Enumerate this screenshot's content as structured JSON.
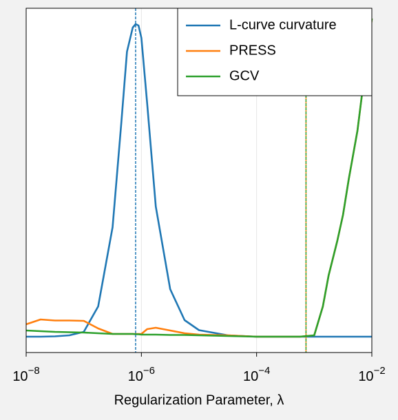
{
  "chart_data": {
    "type": "line",
    "xlabel": "Regularization Parameter, λ",
    "xscale": "log",
    "xlim": [
      1e-08,
      0.01
    ],
    "ylim": [
      0,
      1
    ],
    "xticks": [
      {
        "value": 1e-08,
        "label": "10",
        "exponent": "−8"
      },
      {
        "value": 1e-06,
        "label": "10",
        "exponent": "−6"
      },
      {
        "value": 0.0001,
        "label": "10",
        "exponent": "−4"
      },
      {
        "value": 0.01,
        "label": "10",
        "exponent": "−2"
      }
    ],
    "grid": true,
    "legend": "upper right",
    "x": [
      1e-08,
      1.778e-08,
      3.162e-08,
      5.623e-08,
      1e-07,
      1.778e-07,
      3.162e-07,
      4.467e-07,
      5.623e-07,
      7.079e-07,
      7.943e-07,
      8.913e-07,
      1e-06,
      1.259e-06,
      1.778e-06,
      3.162e-06,
      5.623e-06,
      1e-05,
      3.162e-05,
      0.0001,
      0.0003162,
      0.0005623,
      0.001,
      0.001413,
      0.001778,
      0.002512,
      0.003162,
      0.003981,
      0.005623,
      0.007943,
      0.01
    ],
    "series": [
      {
        "name": "L-curve curvature",
        "color": "#1f77b4",
        "values": [
          0.046,
          0.046,
          0.047,
          0.05,
          0.06,
          0.134,
          0.364,
          0.664,
          0.874,
          0.944,
          0.954,
          0.95,
          0.914,
          0.724,
          0.424,
          0.184,
          0.094,
          0.065,
          0.05,
          0.046,
          0.046,
          0.046,
          0.046,
          0.046,
          0.046,
          0.046,
          0.046,
          0.046,
          0.046,
          0.046,
          0.046
        ]
      },
      {
        "name": "PRESS",
        "color": "#ff7f0e",
        "values": [
          0.082,
          0.096,
          0.093,
          0.093,
          0.092,
          0.07,
          0.054,
          0.054,
          0.054,
          0.054,
          0.054,
          0.054,
          0.054,
          0.068,
          0.072,
          0.064,
          0.056,
          0.052,
          0.05,
          0.046,
          0.046,
          0.046,
          0.05,
          0.134,
          0.224,
          0.324,
          0.4,
          0.504,
          0.644,
          0.844,
          0.97
        ]
      },
      {
        "name": "GCV",
        "color": "#2ca02c",
        "values": [
          0.064,
          0.062,
          0.06,
          0.059,
          0.058,
          0.056,
          0.054,
          0.054,
          0.054,
          0.054,
          0.053,
          0.053,
          0.052,
          0.052,
          0.052,
          0.051,
          0.051,
          0.05,
          0.048,
          0.046,
          0.046,
          0.046,
          0.05,
          0.134,
          0.224,
          0.324,
          0.4,
          0.504,
          0.644,
          0.844,
          0.97
        ]
      }
    ],
    "vlines": [
      {
        "x": 7.943e-07,
        "color": "#1f77b4"
      },
      {
        "x": 0.00072,
        "color": "#ff7f0e"
      },
      {
        "x": 0.00072,
        "color": "#2ca02c"
      }
    ]
  }
}
